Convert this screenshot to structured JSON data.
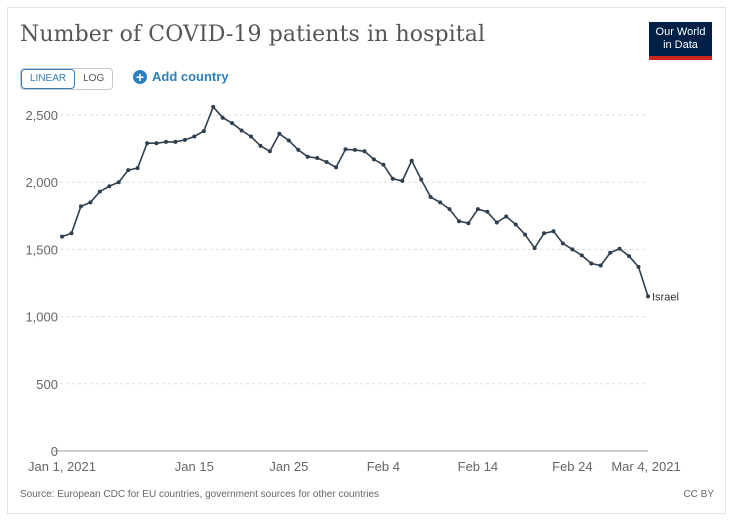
{
  "header": {
    "title": "Number of COVID-19 patients in hospital",
    "logo_line1": "Our World",
    "logo_line2": "in Data"
  },
  "controls": {
    "linear_label": "LINEAR",
    "log_label": "LOG",
    "add_country_label": "Add country"
  },
  "footer": {
    "source": "Source: European CDC for EU countries, government sources for other countries",
    "license": "CC BY"
  },
  "colors": {
    "line": "#2e3f50",
    "accent": "#2d80c0",
    "gridline": "#dddddd",
    "logo_bg": "#002147",
    "logo_bar": "#ce261e"
  },
  "chart_data": {
    "type": "line",
    "title": "Number of COVID-19 patients in hospital",
    "x_tick_labels": [
      "Jan 1, 2021",
      "Jan 15",
      "Jan 25",
      "Feb 4",
      "Feb 14",
      "Feb 24",
      "Mar 4, 2021"
    ],
    "x_tick_days": [
      0,
      14,
      24,
      34,
      44,
      54,
      62
    ],
    "y_ticks": [
      0,
      500,
      1000,
      1500,
      2000,
      2500
    ],
    "y_tick_labels": [
      "0",
      "500",
      "1,000",
      "1,500",
      "2,000",
      "2,500"
    ],
    "ylim": [
      0,
      2600
    ],
    "xlim": [
      "2021-01-01",
      "2021-03-04"
    ],
    "grid": "horizontal dashed",
    "series": [
      {
        "name": "Israel",
        "x_start": "2021-01-01",
        "values": [
          1595,
          1620,
          1820,
          1850,
          1930,
          1970,
          2000,
          2090,
          2105,
          2290,
          2290,
          2300,
          2300,
          2315,
          2340,
          2380,
          2560,
          2480,
          2440,
          2385,
          2340,
          2270,
          2230,
          2360,
          2310,
          2240,
          2190,
          2180,
          2150,
          2110,
          2245,
          2240,
          2230,
          2170,
          2130,
          2025,
          2010,
          2160,
          2020,
          1890,
          1850,
          1800,
          1710,
          1695,
          1800,
          1780,
          1700,
          1745,
          1685,
          1610,
          1510,
          1620,
          1635,
          1545,
          1500,
          1455,
          1395,
          1380,
          1475,
          1505,
          1450,
          1370,
          1150
        ]
      }
    ]
  }
}
